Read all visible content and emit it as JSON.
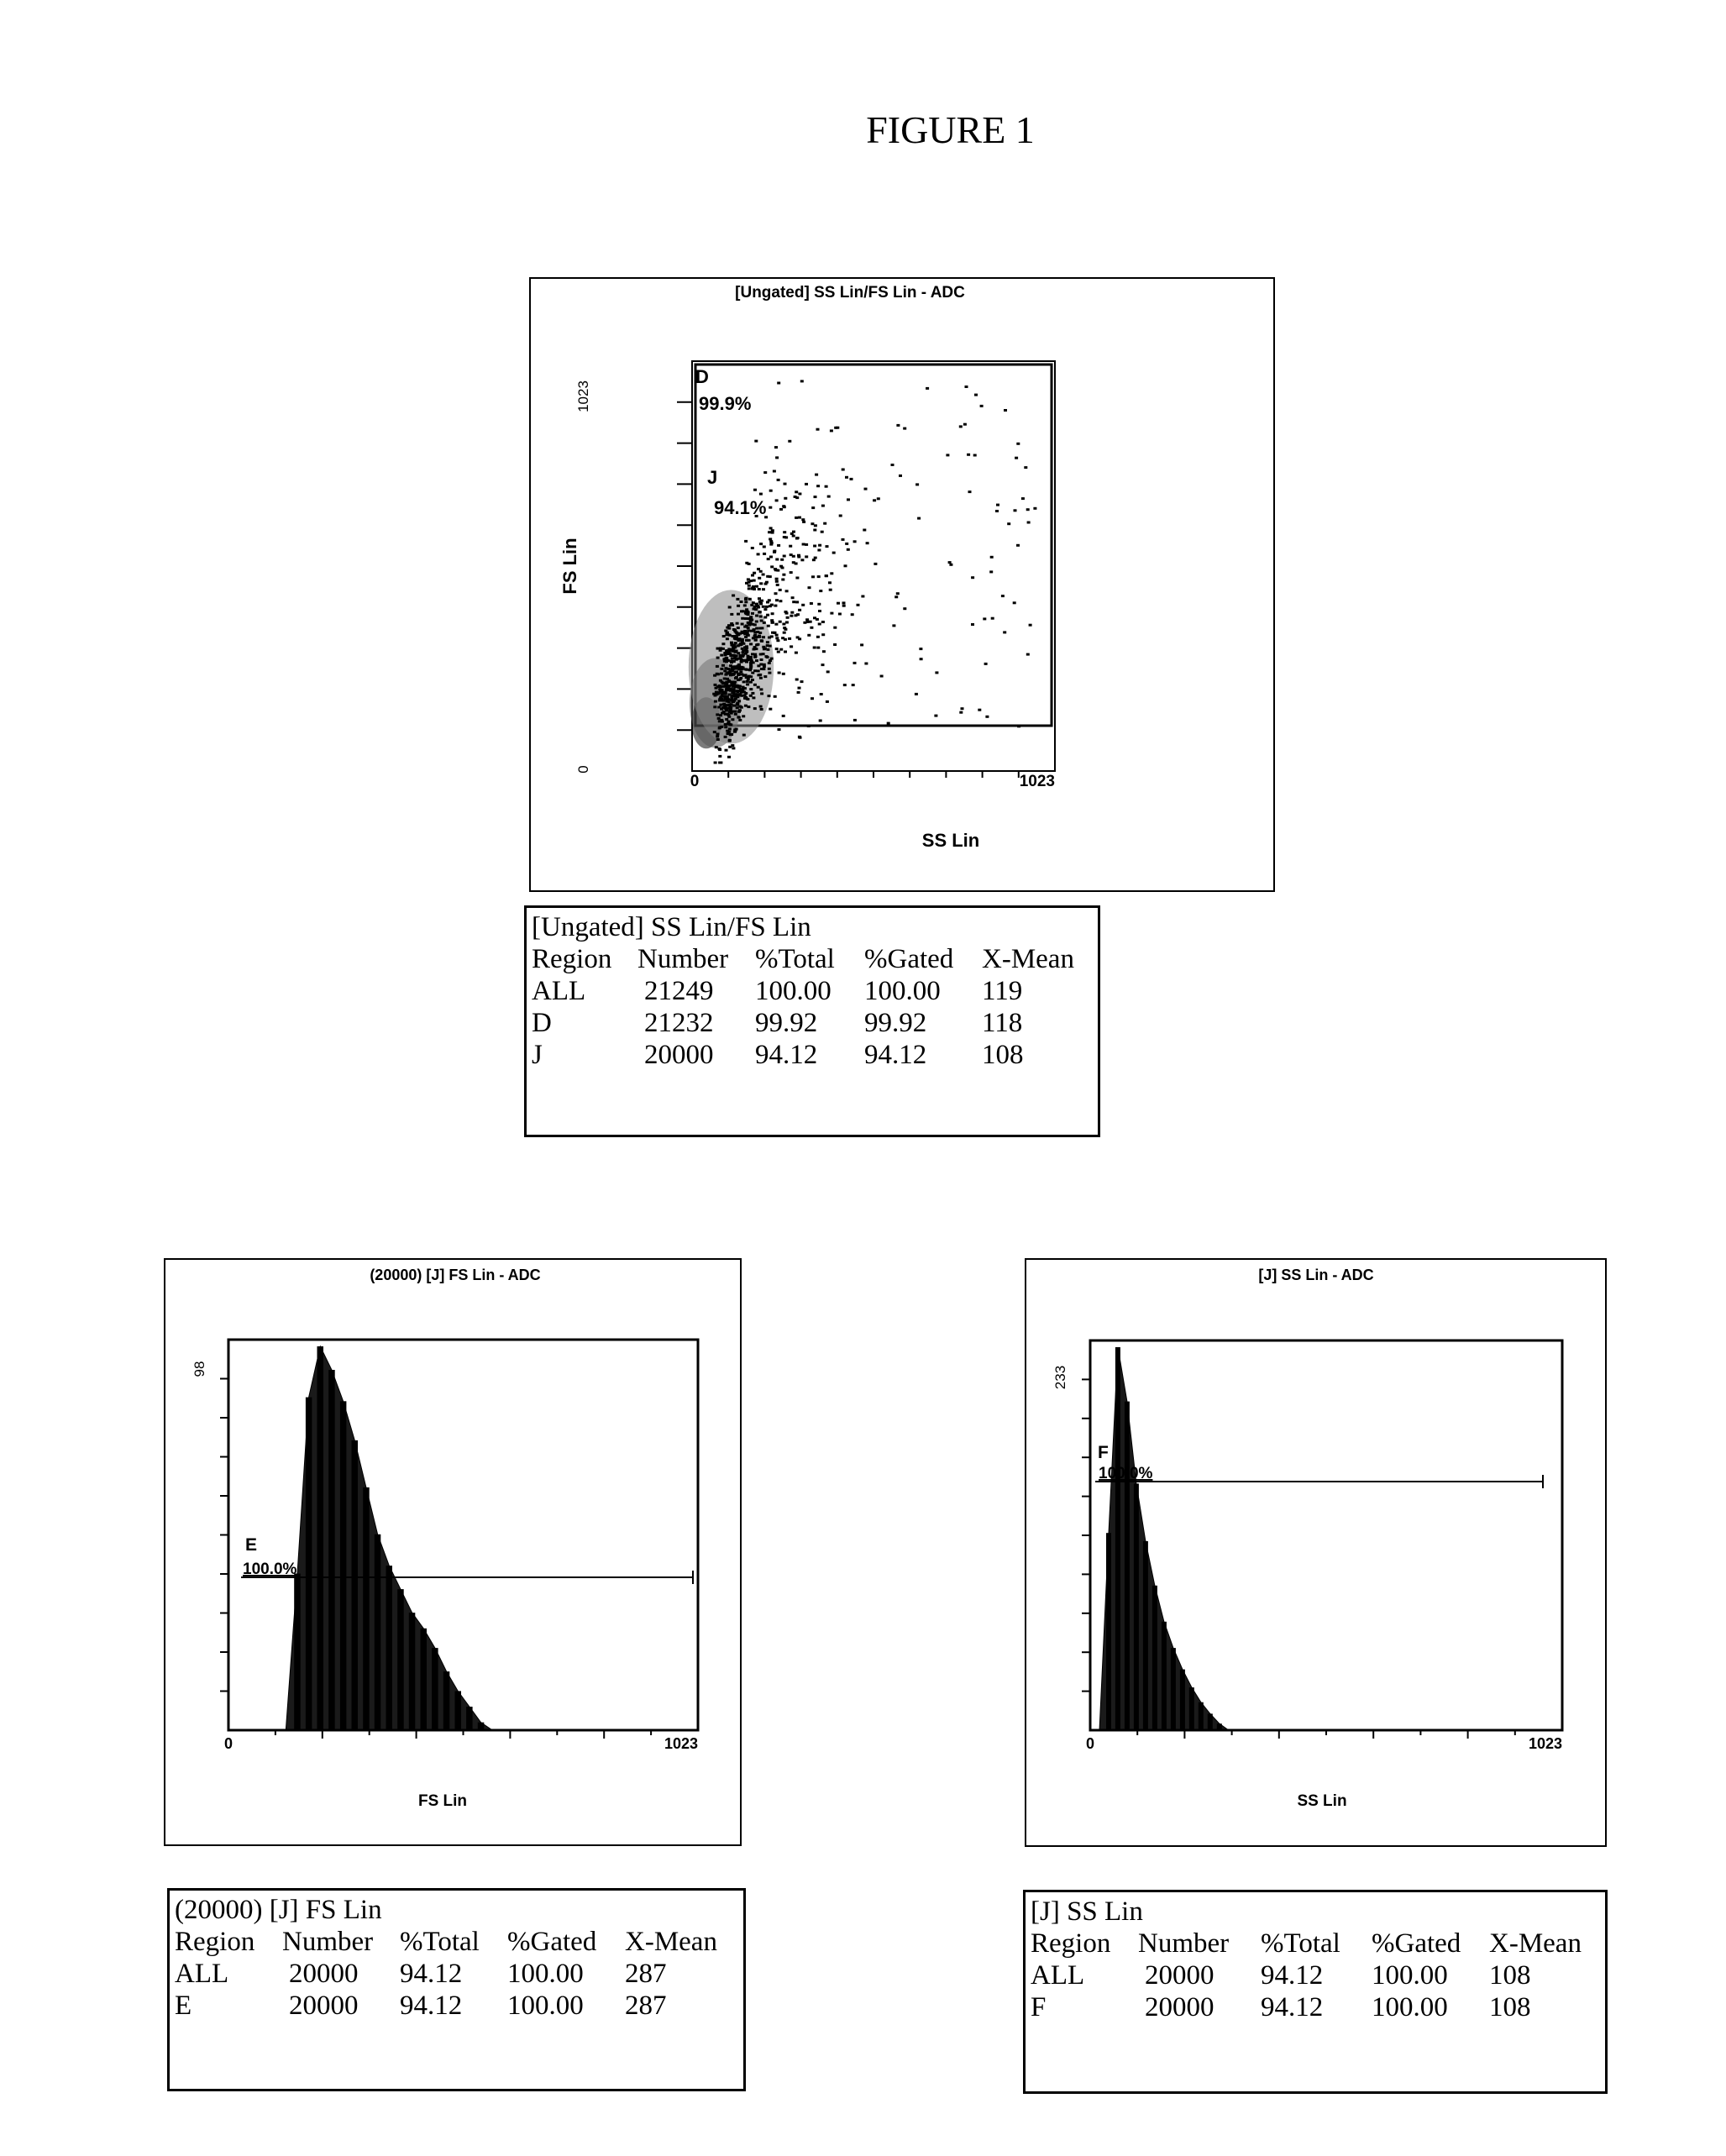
{
  "figure_title": "FIGURE 1",
  "scatter": {
    "title": "[Ungated] SS Lin/FS Lin - ADC",
    "xlabel": "SS Lin",
    "ylabel": "FS Lin",
    "x_min_label": "0",
    "x_max_label": "1023",
    "y_min_label": "0",
    "y_max_label": "1023",
    "regions": [
      {
        "name": "D",
        "percent": "99.9%"
      },
      {
        "name": "J",
        "percent": "94.1%"
      }
    ]
  },
  "scatter_stats": {
    "title": "[Ungated] SS Lin/FS Lin",
    "headers": [
      "Region",
      "Number",
      "%Total",
      "%Gated",
      "X-Mean"
    ],
    "rows": [
      [
        "ALL",
        "21249",
        "100.00",
        "100.00",
        "119"
      ],
      [
        "D",
        "21232",
        "99.92",
        "99.92",
        "118"
      ],
      [
        "J",
        "20000",
        "94.12",
        "94.12",
        "108"
      ]
    ]
  },
  "fs_hist": {
    "title": "(20000) [J] FS Lin - ADC",
    "xlabel": "FS Lin",
    "x_min_label": "0",
    "x_max_label": "1023",
    "y_max_label": "98",
    "region": {
      "name": "E",
      "percent": "100.0%"
    }
  },
  "fs_stats": {
    "title": "(20000) [J] FS Lin",
    "headers": [
      "Region",
      "Number",
      "%Total",
      "%Gated",
      "X-Mean"
    ],
    "rows": [
      [
        "ALL",
        "20000",
        "94.12",
        "100.00",
        "287"
      ],
      [
        "E",
        "20000",
        "94.12",
        "100.00",
        "287"
      ]
    ]
  },
  "ss_hist": {
    "title": "[J] SS Lin - ADC",
    "xlabel": "SS Lin",
    "x_min_label": "0",
    "x_max_label": "1023",
    "y_max_label": "233",
    "region": {
      "name": "F",
      "percent": "100.0%"
    }
  },
  "ss_stats": {
    "title": "[J] SS Lin",
    "headers": [
      "Region",
      "Number",
      "%Total",
      "%Gated",
      "X-Mean"
    ],
    "rows": [
      [
        "ALL",
        "20000",
        "94.12",
        "100.00",
        "108"
      ],
      [
        "F",
        "20000",
        "94.12",
        "100.00",
        "108"
      ]
    ]
  },
  "chart_data": [
    {
      "type": "scatter",
      "title": "[Ungated] SS Lin/FS Lin - ADC",
      "xlabel": "SS Lin",
      "ylabel": "FS Lin",
      "xlim": [
        0,
        1023
      ],
      "ylim": [
        0,
        1023
      ],
      "x_mean": 119,
      "events": 21249,
      "regions": [
        {
          "name": "D",
          "percent": 99.9
        },
        {
          "name": "J",
          "percent": 94.1
        }
      ]
    },
    {
      "type": "bar",
      "title": "(20000) [J] FS Lin - ADC",
      "xlabel": "FS Lin",
      "xlim": [
        0,
        1023
      ],
      "ylim": [
        0,
        98
      ],
      "x": [
        125,
        150,
        175,
        200,
        225,
        250,
        275,
        300,
        325,
        350,
        375,
        400,
        425,
        450,
        475,
        500,
        525,
        550,
        575
      ],
      "values": [
        0,
        40,
        85,
        98,
        92,
        84,
        74,
        62,
        50,
        42,
        36,
        30,
        26,
        21,
        15,
        10,
        6,
        2,
        0
      ],
      "x_mean": 287,
      "regions": [
        {
          "name": "E",
          "percent": 100.0
        }
      ]
    },
    {
      "type": "bar",
      "title": "[J] SS Lin - ADC",
      "xlabel": "SS Lin",
      "xlim": [
        0,
        1023
      ],
      "ylim": [
        0,
        233
      ],
      "x": [
        20,
        40,
        60,
        80,
        100,
        120,
        140,
        160,
        180,
        200,
        220,
        240,
        260,
        280,
        300
      ],
      "values": [
        0,
        120,
        233,
        200,
        150,
        115,
        88,
        66,
        50,
        37,
        26,
        17,
        10,
        4,
        0
      ],
      "x_mean": 108,
      "regions": [
        {
          "name": "F",
          "percent": 100.0
        }
      ]
    }
  ]
}
